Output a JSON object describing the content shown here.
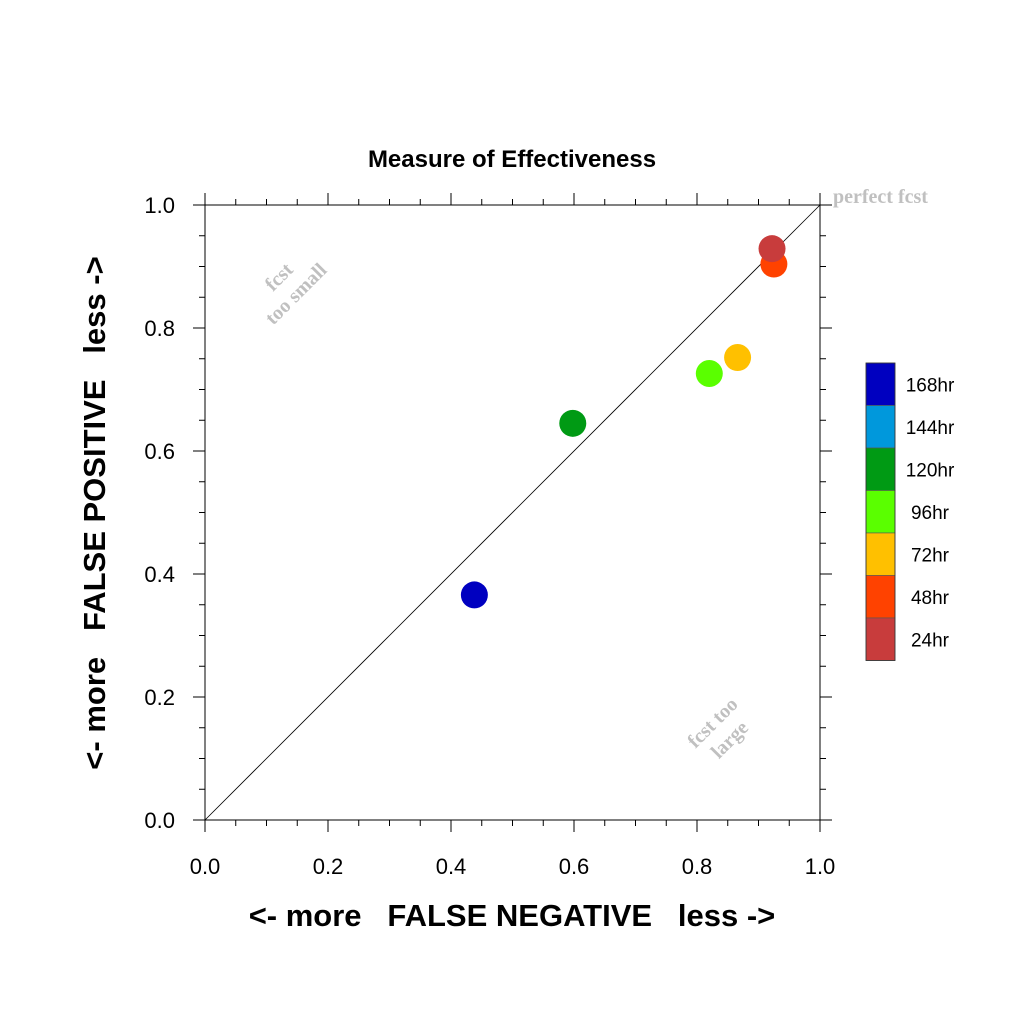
{
  "chart_data": {
    "type": "scatter",
    "title": "Measure of Effectiveness",
    "xlabel": "<- more   FALSE NEGATIVE   less ->",
    "ylabel": "<- more   FALSE POSITIVE   less ->",
    "xlim": [
      0.0,
      1.0
    ],
    "ylim": [
      0.0,
      1.0
    ],
    "xticks": [
      "0.0",
      "0.2",
      "0.4",
      "0.6",
      "0.8",
      "1.0"
    ],
    "yticks": [
      "0.0",
      "0.2",
      "0.4",
      "0.6",
      "0.8",
      "1.0"
    ],
    "grid": false,
    "diagonal_line": true,
    "annotations": {
      "perfect": "perfect fcst",
      "too_small_line1": "fcst",
      "too_small_line2": "too small",
      "too_large_line1": "fcst too",
      "too_large_line2": "large"
    },
    "points": [
      {
        "label": "168hr",
        "x": 0.438,
        "y": 0.366,
        "color": "#0000c0"
      },
      {
        "label": "120hr",
        "x": 0.598,
        "y": 0.645,
        "color": "#009a14"
      },
      {
        "label": "96hr",
        "x": 0.82,
        "y": 0.726,
        "color": "#5aff00"
      },
      {
        "label": "72hr",
        "x": 0.866,
        "y": 0.752,
        "color": "#ffc000"
      },
      {
        "label": "48hr",
        "x": 0.925,
        "y": 0.904,
        "color": "#ff4200"
      },
      {
        "label": "24hr",
        "x": 0.922,
        "y": 0.929,
        "color": "#c83c3c"
      }
    ],
    "legend": {
      "placement": "right",
      "items": [
        {
          "label": "168hr",
          "color": "#0000c0"
        },
        {
          "label": "144hr",
          "color": "#0098dc"
        },
        {
          "label": "120hr",
          "color": "#009a14"
        },
        {
          "label": "96hr",
          "color": "#5aff00"
        },
        {
          "label": "72hr",
          "color": "#ffc000"
        },
        {
          "label": "48hr",
          "color": "#ff4200"
        },
        {
          "label": "24hr",
          "color": "#c83c3c"
        }
      ]
    }
  }
}
